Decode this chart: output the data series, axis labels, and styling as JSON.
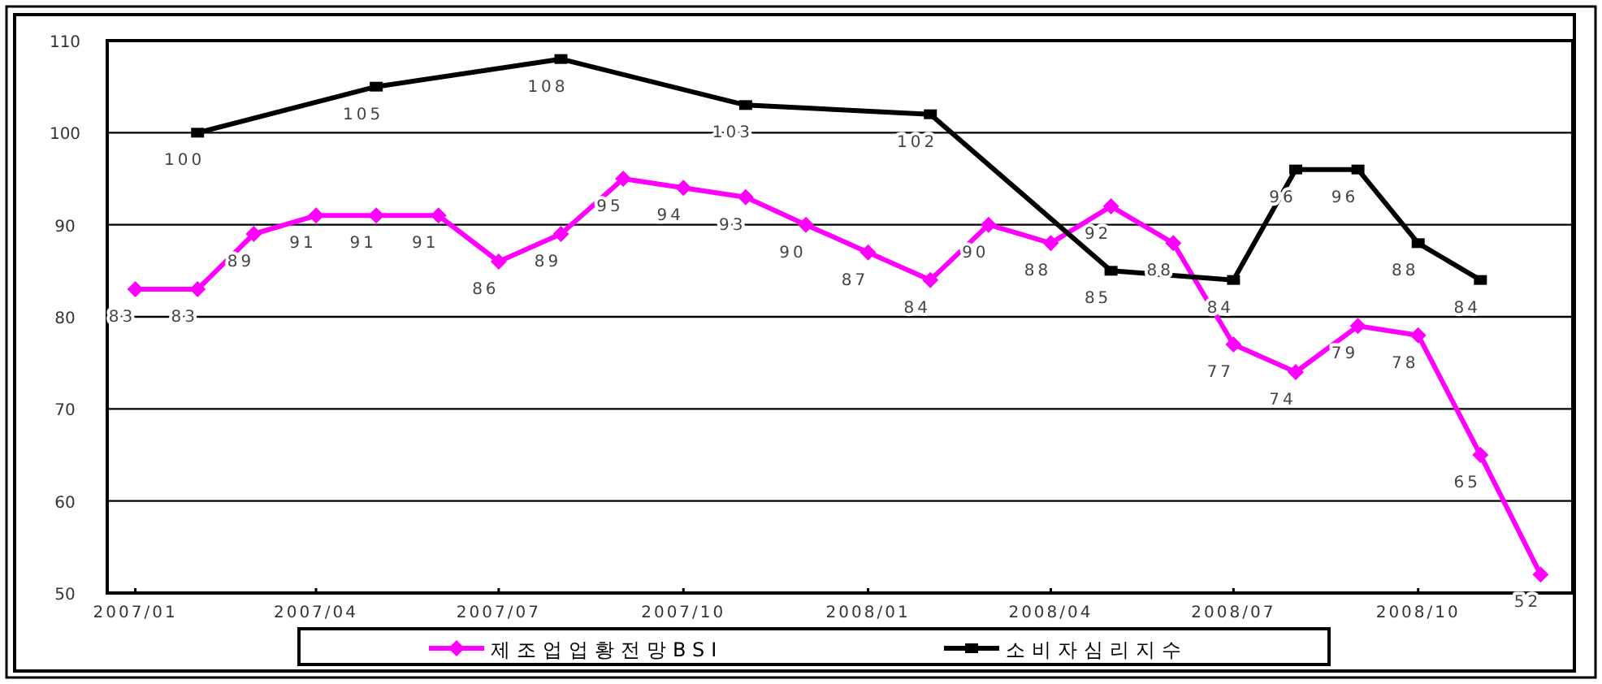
{
  "chart_data": {
    "type": "line",
    "x": [
      "2007-01",
      "2007-02",
      "2007-03",
      "2007-04",
      "2007-05",
      "2007-06",
      "2007-07",
      "2007-08",
      "2007-09",
      "2007-10",
      "2007-11",
      "2007-12",
      "2008-01",
      "2008-02",
      "2008-03",
      "2008-04",
      "2008-05",
      "2008-06",
      "2008-07",
      "2008-08",
      "2008-09",
      "2008-10",
      "2008-11",
      "2008-12"
    ],
    "series": [
      {
        "name": "제조업업황전망BSI",
        "color": "#ff00ff",
        "marker": "diamond",
        "values": [
          83,
          83,
          89,
          91,
          91,
          91,
          86,
          89,
          95,
          94,
          93,
          90,
          87,
          84,
          90,
          88,
          92,
          88,
          77,
          74,
          79,
          78,
          65,
          52
        ]
      },
      {
        "name": "소비자심리지수",
        "color": "#000000",
        "marker": "square",
        "x": [
          "2007-02",
          "2007-05",
          "2007-08",
          "2007-11",
          "2008-02",
          "2008-05",
          "2008-07",
          "2008-08",
          "2008-09",
          "2008-10",
          "2008-11"
        ],
        "values": [
          100,
          105,
          108,
          103,
          102,
          85,
          84,
          96,
          96,
          88,
          84
        ]
      }
    ],
    "xlim": [
      "2006-12-18",
      "2008-12-17"
    ],
    "xticks": [
      {
        "value": "2007-01",
        "label": "2007/01"
      },
      {
        "value": "2007-04",
        "label": "2007/04"
      },
      {
        "value": "2007-07",
        "label": "2007/07"
      },
      {
        "value": "2007-10",
        "label": "2007/10"
      },
      {
        "value": "2008-01",
        "label": "2008/01"
      },
      {
        "value": "2008-04",
        "label": "2008/04"
      },
      {
        "value": "2008-07",
        "label": "2008/07"
      },
      {
        "value": "2008-10",
        "label": "2008/10"
      }
    ],
    "ylim": [
      50,
      110
    ],
    "yticks": [
      50,
      60,
      70,
      80,
      90,
      100,
      110
    ],
    "grid": "y",
    "legend": "bottom",
    "data_labels": true,
    "line_style": "solid"
  }
}
